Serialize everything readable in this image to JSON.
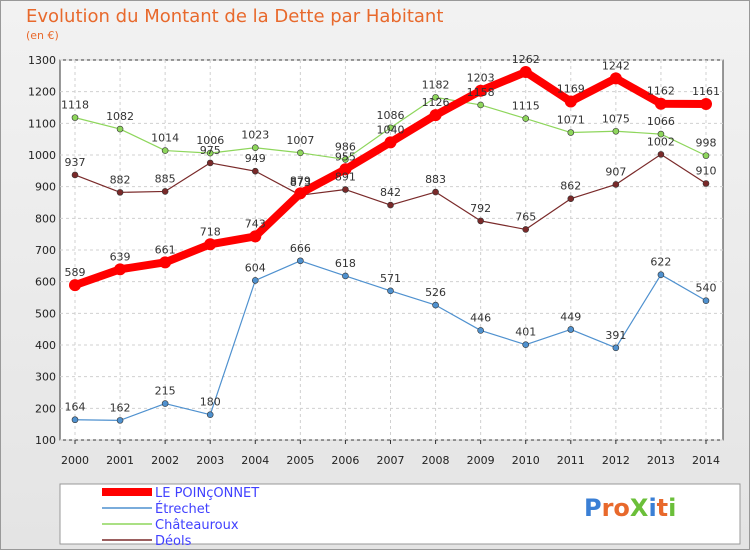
{
  "chart_data": {
    "type": "line",
    "title": "Evolution du Montant de la Dette par Habitant",
    "subtitle": "(en €)",
    "xlabel": "",
    "ylabel": "",
    "x": [
      "2000",
      "2001",
      "2002",
      "2003",
      "2004",
      "2005",
      "2006",
      "2007",
      "2008",
      "2009",
      "2010",
      "2011",
      "2012",
      "2013",
      "2014"
    ],
    "ylim": [
      100,
      1300
    ],
    "yticks": [
      100,
      200,
      300,
      400,
      500,
      600,
      700,
      800,
      900,
      1000,
      1100,
      1200,
      1300
    ],
    "grid": true,
    "legend_position": "bottom-left",
    "series": [
      {
        "name": "LE POINçONNET",
        "color": "#ff0000",
        "values": [
          589,
          639,
          661,
          718,
          743,
          879,
          955,
          1040,
          1126,
          1203,
          1262,
          1169,
          1242,
          1162,
          1161
        ]
      },
      {
        "name": "Étrechet",
        "color": "#4f91cf",
        "values": [
          164,
          162,
          215,
          180,
          604,
          666,
          618,
          571,
          526,
          446,
          401,
          449,
          391,
          622,
          540
        ]
      },
      {
        "name": "Châteauroux",
        "color": "#8ed65c",
        "values": [
          1118,
          1082,
          1014,
          1006,
          1023,
          1007,
          986,
          1086,
          1182,
          1158,
          1115,
          1071,
          1075,
          1066,
          998
        ]
      },
      {
        "name": "Déols",
        "color": "#7a2a2a",
        "values": [
          937,
          882,
          885,
          975,
          949,
          873,
          891,
          842,
          883,
          792,
          765,
          862,
          907,
          1002,
          910
        ]
      }
    ]
  },
  "branding": {
    "logo": "ProXiti"
  }
}
